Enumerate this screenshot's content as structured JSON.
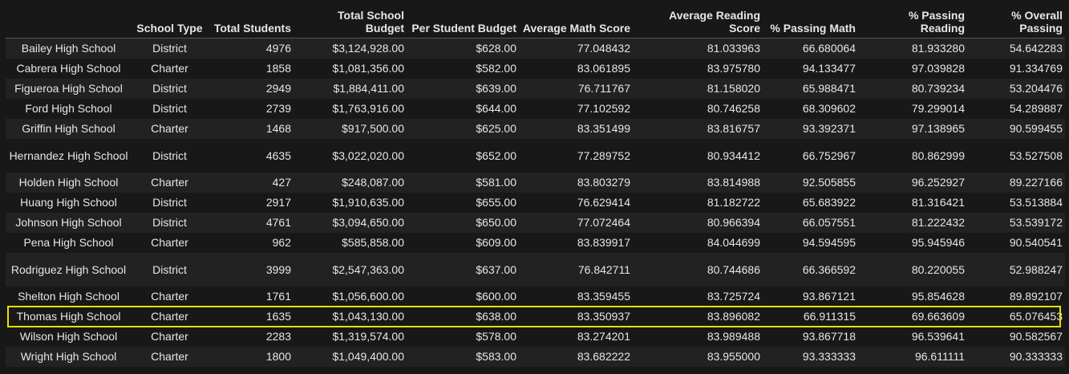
{
  "headers": [
    "",
    "School Type",
    "Total Students",
    "Total School Budget",
    "Per Student Budget",
    "Average Math Score",
    "Average Reading Score",
    "% Passing Math",
    "% Passing Reading",
    "% Overall Passing"
  ],
  "rows": [
    {
      "school": "Bailey High School",
      "type": "District",
      "students": "4976",
      "budget": "$3,124,928.00",
      "per_student": "$628.00",
      "math": "77.048432",
      "reading": "81.033963",
      "pass_math": "66.680064",
      "pass_reading": "81.933280",
      "overall": "54.642283"
    },
    {
      "school": "Cabrera High School",
      "type": "Charter",
      "students": "1858",
      "budget": "$1,081,356.00",
      "per_student": "$582.00",
      "math": "83.061895",
      "reading": "83.975780",
      "pass_math": "94.133477",
      "pass_reading": "97.039828",
      "overall": "91.334769"
    },
    {
      "school": "Figueroa High School",
      "type": "District",
      "students": "2949",
      "budget": "$1,884,411.00",
      "per_student": "$639.00",
      "math": "76.711767",
      "reading": "81.158020",
      "pass_math": "65.988471",
      "pass_reading": "80.739234",
      "overall": "53.204476"
    },
    {
      "school": "Ford High School",
      "type": "District",
      "students": "2739",
      "budget": "$1,763,916.00",
      "per_student": "$644.00",
      "math": "77.102592",
      "reading": "80.746258",
      "pass_math": "68.309602",
      "pass_reading": "79.299014",
      "overall": "54.289887"
    },
    {
      "school": "Griffin High School",
      "type": "Charter",
      "students": "1468",
      "budget": "$917,500.00",
      "per_student": "$625.00",
      "math": "83.351499",
      "reading": "83.816757",
      "pass_math": "93.392371",
      "pass_reading": "97.138965",
      "overall": "90.599455"
    },
    {
      "school": "Hernandez High School",
      "type": "District",
      "students": "4635",
      "budget": "$3,022,020.00",
      "per_student": "$652.00",
      "math": "77.289752",
      "reading": "80.934412",
      "pass_math": "66.752967",
      "pass_reading": "80.862999",
      "overall": "53.527508"
    },
    {
      "school": "Holden High School",
      "type": "Charter",
      "students": "427",
      "budget": "$248,087.00",
      "per_student": "$581.00",
      "math": "83.803279",
      "reading": "83.814988",
      "pass_math": "92.505855",
      "pass_reading": "96.252927",
      "overall": "89.227166"
    },
    {
      "school": "Huang High School",
      "type": "District",
      "students": "2917",
      "budget": "$1,910,635.00",
      "per_student": "$655.00",
      "math": "76.629414",
      "reading": "81.182722",
      "pass_math": "65.683922",
      "pass_reading": "81.316421",
      "overall": "53.513884"
    },
    {
      "school": "Johnson High School",
      "type": "District",
      "students": "4761",
      "budget": "$3,094,650.00",
      "per_student": "$650.00",
      "math": "77.072464",
      "reading": "80.966394",
      "pass_math": "66.057551",
      "pass_reading": "81.222432",
      "overall": "53.539172"
    },
    {
      "school": "Pena High School",
      "type": "Charter",
      "students": "962",
      "budget": "$585,858.00",
      "per_student": "$609.00",
      "math": "83.839917",
      "reading": "84.044699",
      "pass_math": "94.594595",
      "pass_reading": "95.945946",
      "overall": "90.540541"
    },
    {
      "school": "Rodriguez High School",
      "type": "District",
      "students": "3999",
      "budget": "$2,547,363.00",
      "per_student": "$637.00",
      "math": "76.842711",
      "reading": "80.744686",
      "pass_math": "66.366592",
      "pass_reading": "80.220055",
      "overall": "52.988247"
    },
    {
      "school": "Shelton High School",
      "type": "Charter",
      "students": "1761",
      "budget": "$1,056,600.00",
      "per_student": "$600.00",
      "math": "83.359455",
      "reading": "83.725724",
      "pass_math": "93.867121",
      "pass_reading": "95.854628",
      "overall": "89.892107"
    },
    {
      "school": "Thomas High School",
      "type": "Charter",
      "students": "1635",
      "budget": "$1,043,130.00",
      "per_student": "$638.00",
      "math": "83.350937",
      "reading": "83.896082",
      "pass_math": "66.911315",
      "pass_reading": "69.663609",
      "overall": "65.076453"
    },
    {
      "school": "Wilson High School",
      "type": "Charter",
      "students": "2283",
      "budget": "$1,319,574.00",
      "per_student": "$578.00",
      "math": "83.274201",
      "reading": "83.989488",
      "pass_math": "93.867718",
      "pass_reading": "96.539641",
      "overall": "90.582567"
    },
    {
      "school": "Wright High School",
      "type": "Charter",
      "students": "1800",
      "budget": "$1,049,400.00",
      "per_student": "$583.00",
      "math": "83.682222",
      "reading": "83.955000",
      "pass_math": "93.333333",
      "pass_reading": "96.611111",
      "overall": "90.333333"
    }
  ],
  "highlighted_row": "Thomas High School",
  "colors": {
    "background": "#181818",
    "row_alt": "#222222",
    "text": "#e6e6e6",
    "highlight_border": "#e8e000"
  }
}
